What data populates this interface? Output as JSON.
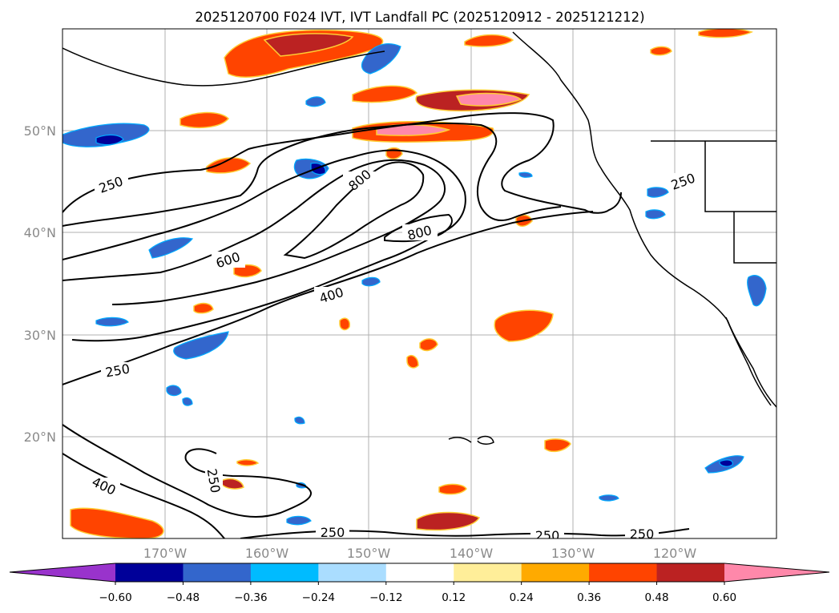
{
  "title": "2025120700 F024 IVT, IVT Landfall PC (2025120912 - 2025121212)",
  "lat_labels": [
    "50°N",
    "40°N",
    "30°N",
    "20°N"
  ],
  "lon_labels": [
    "170°W",
    "160°W",
    "150°W",
    "140°W",
    "130°W",
    "120°W"
  ],
  "colorbar": {
    "tick_labels": [
      "−0.60",
      "−0.48",
      "−0.36",
      "−0.24",
      "−0.12",
      "0.12",
      "0.24",
      "0.36",
      "0.48",
      "0.60"
    ],
    "colors": [
      "#9933cc",
      "#000099",
      "#3366cc",
      "#00bbff",
      "#aaddff",
      "#ffffff",
      "#ffee99",
      "#ffaa00",
      "#ff4400",
      "#bb2222",
      "#ff88aa"
    ]
  },
  "contour_labels": [
    "250",
    "250",
    "250",
    "250",
    "250",
    "250",
    "250",
    "400",
    "400",
    "600",
    "800",
    "800"
  ]
}
